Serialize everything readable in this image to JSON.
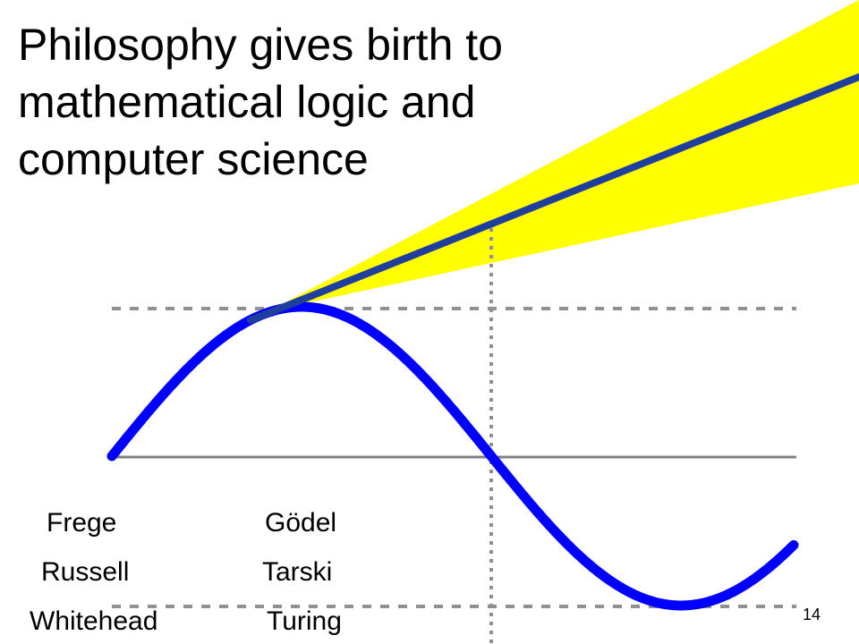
{
  "title_lines": [
    "Philosophy gives birth to",
    "mathematical logic and",
    "computer science"
  ],
  "names": {
    "left": [
      "Frege",
      "Russell",
      "Whitehead"
    ],
    "right": [
      "Gödel",
      "Tarski",
      "Turing"
    ]
  },
  "page_number": "14",
  "colors": {
    "wave": "#0000ff",
    "tangent_line": "#1f3f9f",
    "beam": "#ffff00",
    "axis": "#808080",
    "guide": "#909090"
  }
}
